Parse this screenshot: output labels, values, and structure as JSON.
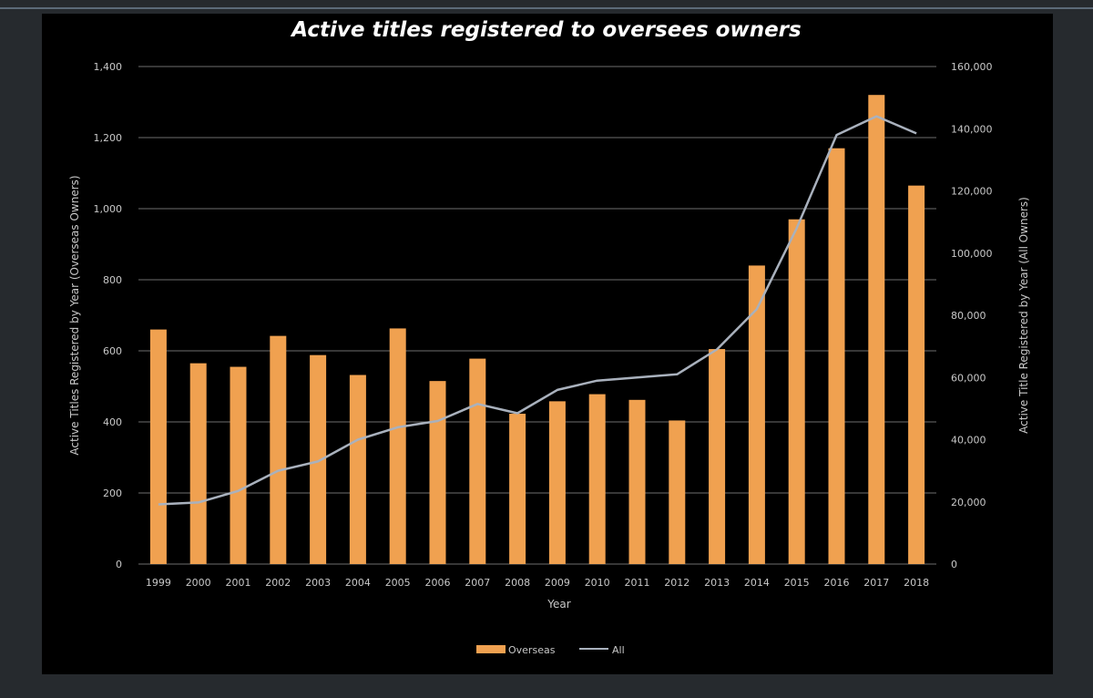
{
  "chart_data": {
    "type": "bar",
    "title": "Active titles registered to oversees owners",
    "xlabel": "Year",
    "ylabel": "Active Titles Registered by Year (Overseas Owners)",
    "y2label": "Active Title Registered by Year (All Owners)",
    "categories": [
      "1999",
      "2000",
      "2001",
      "2002",
      "2003",
      "2004",
      "2005",
      "2006",
      "2007",
      "2008",
      "2009",
      "2010",
      "2011",
      "2012",
      "2013",
      "2014",
      "2015",
      "2016",
      "2017",
      "2018"
    ],
    "ylim": [
      0,
      1400
    ],
    "y2lim": [
      0,
      160000
    ],
    "yticks": [
      "0",
      "200",
      "400",
      "600",
      "800",
      "1,000",
      "1,200",
      "1,400"
    ],
    "y2ticks": [
      "0",
      "20,000",
      "40,000",
      "60,000",
      "80,000",
      "100,000",
      "120,000",
      "140,000",
      "160,000"
    ],
    "grid": true,
    "legend_position": "bottom",
    "series": [
      {
        "name": "Overseas",
        "type": "bar",
        "axis": "left",
        "color": "#f0a150",
        "values": [
          660,
          565,
          555,
          642,
          588,
          532,
          663,
          515,
          578,
          423,
          458,
          478,
          462,
          404,
          605,
          840,
          970,
          1170,
          1320,
          1065
        ]
      },
      {
        "name": "All",
        "type": "line",
        "axis": "right",
        "color": "#a9b1bd",
        "values": [
          19200,
          19800,
          23500,
          30000,
          33000,
          40000,
          44000,
          46000,
          51500,
          48500,
          56000,
          59000,
          60000,
          61000,
          69000,
          82000,
          108000,
          138000,
          144000,
          138500
        ]
      }
    ]
  }
}
